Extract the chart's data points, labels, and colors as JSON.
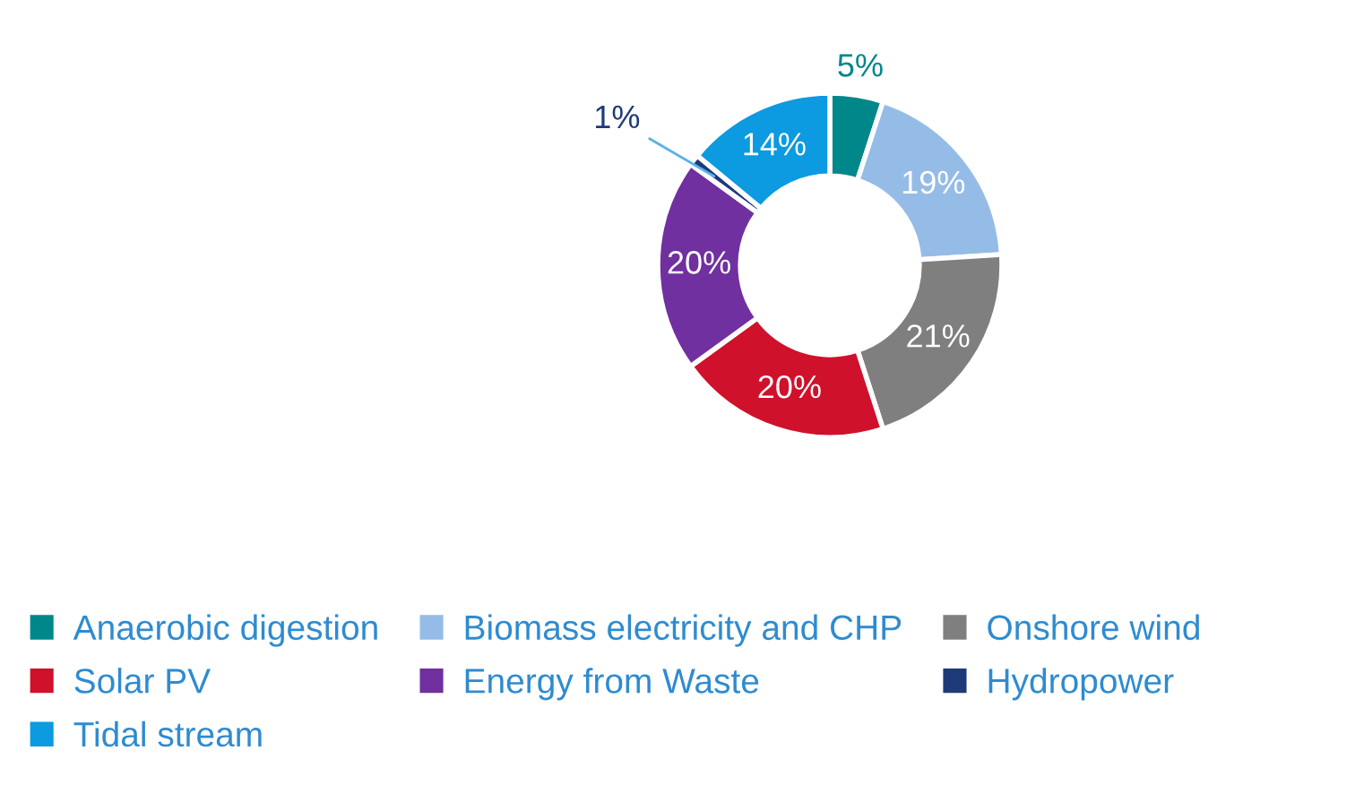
{
  "chart_data": {
    "type": "donut",
    "categories": [
      "Anaerobic digestion",
      "Biomass electricity and CHP",
      "Onshore wind",
      "Solar PV",
      "Energy from Waste",
      "Hydropower",
      "Tidal stream"
    ],
    "values": [
      5,
      19,
      21,
      20,
      20,
      1,
      14
    ],
    "colors": [
      "#00878a",
      "#95bce6",
      "#7f7f7f",
      "#d0112b",
      "#7030a0",
      "#1f3a78",
      "#0c9ae0"
    ],
    "value_labels": [
      "5%",
      "19%",
      "21%",
      "20%",
      "20%",
      "1%",
      "14%"
    ],
    "legend": "bottom"
  }
}
